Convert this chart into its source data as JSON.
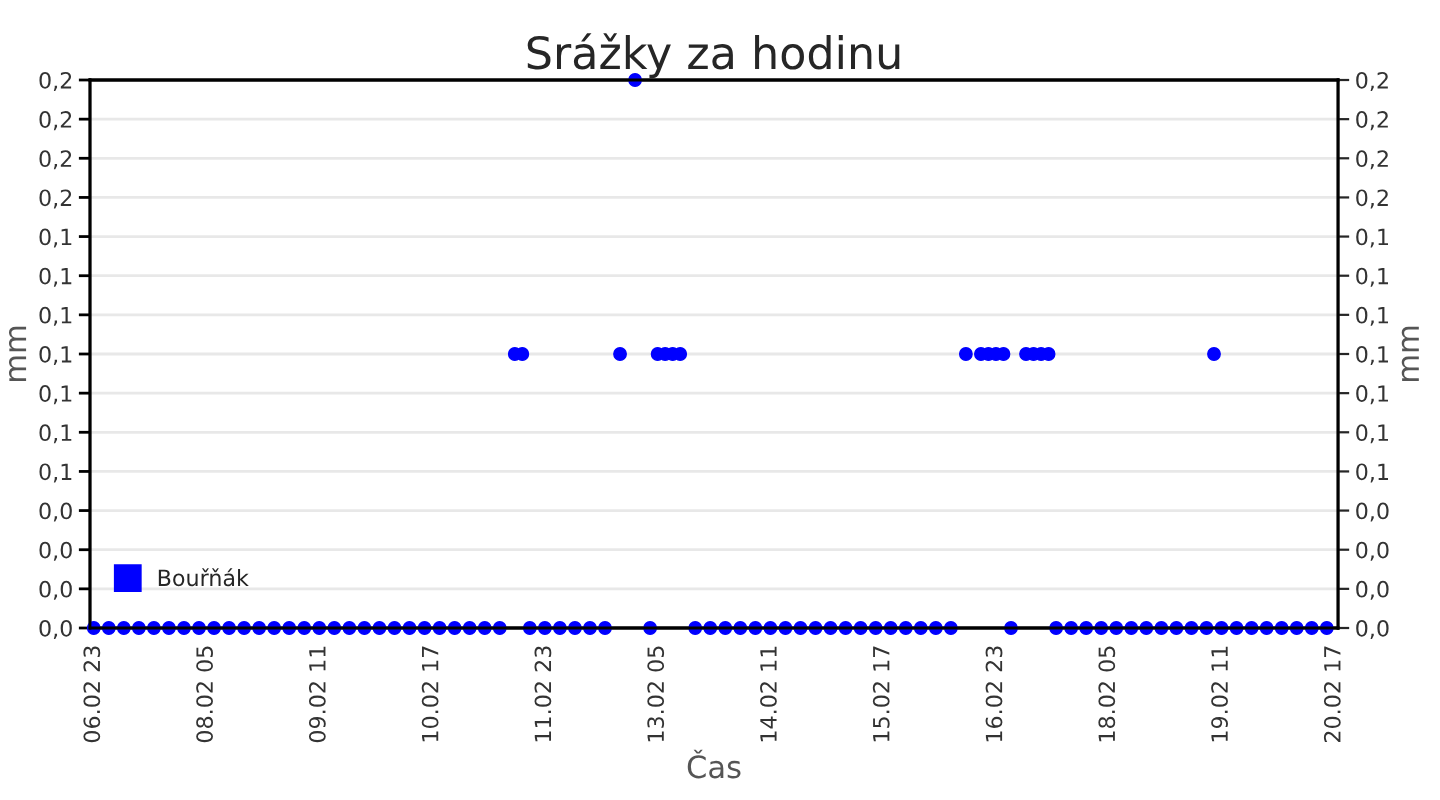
{
  "chart_data": {
    "type": "scatter",
    "title": "Srážky za hodinu",
    "xlabel": "Čas",
    "ylabel": "mm",
    "y2label": "mm",
    "categories": [
      "06.02 23",
      null,
      null,
      null,
      null,
      null,
      null,
      null,
      null,
      null,
      null,
      null,
      null,
      null,
      null,
      "08.02 05",
      null,
      null,
      null,
      null,
      null,
      null,
      null,
      null,
      null,
      null,
      null,
      null,
      null,
      null,
      "09.02 11",
      null,
      null,
      null,
      null,
      null,
      null,
      null,
      null,
      null,
      null,
      null,
      null,
      null,
      null,
      "10.02 17",
      null,
      null,
      null,
      null,
      null,
      null,
      null,
      null,
      null,
      null,
      null,
      null,
      null,
      null,
      "11.02 23",
      null,
      null,
      null,
      null,
      null,
      null,
      null,
      null,
      null,
      null,
      null,
      null,
      null,
      null,
      "13.02 05",
      null,
      null,
      null,
      null,
      null,
      null,
      null,
      null,
      null,
      null,
      null,
      null,
      null,
      null,
      "14.02 11",
      null,
      null,
      null,
      null,
      null,
      null,
      null,
      null,
      null,
      null,
      null,
      null,
      null,
      null,
      "15.02 17",
      null,
      null,
      null,
      null,
      null,
      null,
      null,
      null,
      null,
      null,
      null,
      null,
      null,
      null,
      "16.02 23",
      null,
      null,
      null,
      null,
      null,
      null,
      null,
      null,
      null,
      null,
      null,
      null,
      null,
      null,
      "18.02 05",
      null,
      null,
      null,
      null,
      null,
      null,
      null,
      null,
      null,
      null,
      null,
      null,
      null,
      null,
      "19.02 11",
      null,
      null,
      null,
      null,
      null,
      null,
      null,
      null,
      null,
      null,
      null,
      null,
      null,
      null,
      "20.02 17"
    ],
    "ylim": [
      0,
      0.2
    ],
    "yticks": [
      {
        "value": 0,
        "label": "0,0"
      },
      {
        "value": 0.01429,
        "label": "0,0"
      },
      {
        "value": 0.02857,
        "label": "0,0"
      },
      {
        "value": 0.04286,
        "label": "0,0"
      },
      {
        "value": 0.05714,
        "label": "0,1"
      },
      {
        "value": 0.07143,
        "label": "0,1"
      },
      {
        "value": 0.08571,
        "label": "0,1"
      },
      {
        "value": 0.1,
        "label": "0,1"
      },
      {
        "value": 0.11429,
        "label": "0,1"
      },
      {
        "value": 0.12857,
        "label": "0,1"
      },
      {
        "value": 0.14286,
        "label": "0,1"
      },
      {
        "value": 0.15714,
        "label": "0,2"
      },
      {
        "value": 0.17143,
        "label": "0,2"
      },
      {
        "value": 0.18571,
        "label": "0,2"
      },
      {
        "value": 0.2,
        "label": "0,2"
      }
    ],
    "y2lim": [
      0,
      0.2
    ],
    "y2ticks": [
      {
        "value": 0,
        "label": "0,0"
      },
      {
        "value": 0.01429,
        "label": "0,0"
      },
      {
        "value": 0.02857,
        "label": "0,0"
      },
      {
        "value": 0.04286,
        "label": "0,0"
      },
      {
        "value": 0.05714,
        "label": "0,1"
      },
      {
        "value": 0.07143,
        "label": "0,1"
      },
      {
        "value": 0.08571,
        "label": "0,1"
      },
      {
        "value": 0.1,
        "label": "0,1"
      },
      {
        "value": 0.11429,
        "label": "0,1"
      },
      {
        "value": 0.12857,
        "label": "0,1"
      },
      {
        "value": 0.14286,
        "label": "0,1"
      },
      {
        "value": 0.15714,
        "label": "0,2"
      },
      {
        "value": 0.17143,
        "label": "0,2"
      },
      {
        "value": 0.18571,
        "label": "0,2"
      },
      {
        "value": 0.2,
        "label": "0,2"
      }
    ],
    "grid": "y",
    "legend": "bottom left",
    "marker": "circle",
    "series": [
      {
        "name": "Bouřňák",
        "color": "#0000ff",
        "values": [
          0,
          null,
          0,
          null,
          0,
          null,
          0,
          null,
          0,
          null,
          0,
          null,
          0,
          null,
          0,
          null,
          0,
          null,
          0,
          null,
          0,
          null,
          0,
          null,
          0,
          null,
          0,
          null,
          0,
          null,
          0,
          null,
          0,
          null,
          0,
          null,
          0,
          null,
          0,
          null,
          0,
          null,
          0,
          null,
          0,
          null,
          0,
          null,
          0,
          null,
          0,
          null,
          0,
          null,
          0,
          null,
          0.1,
          0.1,
          0,
          null,
          0,
          null,
          0,
          null,
          0,
          null,
          0,
          null,
          0,
          null,
          0.1,
          null,
          0.2,
          null,
          0,
          0.1,
          0.1,
          0.1,
          0.1,
          null,
          0,
          null,
          0,
          null,
          0,
          null,
          0,
          null,
          0,
          null,
          0,
          null,
          0,
          null,
          0,
          null,
          0,
          null,
          0,
          null,
          0,
          null,
          0,
          null,
          0,
          null,
          0,
          null,
          0,
          null,
          0,
          null,
          0,
          null,
          0,
          null,
          0.1,
          null,
          0.1,
          0.1,
          0.1,
          0.1,
          0,
          null,
          0.1,
          0.1,
          0.1,
          0.1,
          0,
          null,
          0,
          null,
          0,
          null,
          0,
          null,
          0,
          null,
          0,
          null,
          0,
          null,
          0,
          null,
          0,
          null,
          0,
          null,
          0,
          0.1,
          0,
          null,
          0,
          null,
          0,
          null,
          0,
          null,
          0,
          null,
          0,
          null,
          0,
          null,
          0,
          null
        ]
      }
    ]
  }
}
